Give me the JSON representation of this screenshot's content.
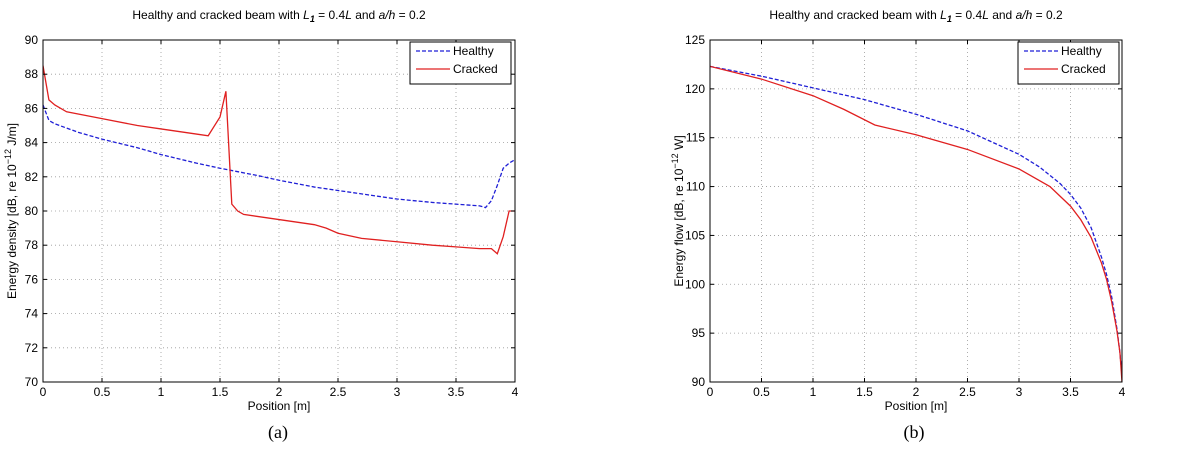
{
  "chart_data": [
    {
      "type": "line",
      "title": "Healthy and cracked beam with L1 = 0.4L and a/h = 0.2",
      "title_parts": {
        "pre": "Healthy and cracked beam with ",
        "sym1": "L",
        "sub1": "1",
        "mid": " = 0.4",
        "sym2": "L",
        "mid2": " and ",
        "sym3": "a/h",
        "post": " = 0.2"
      },
      "xlabel": "Position [m]",
      "ylabel_parts": {
        "pre": "Energy density [dB, re 10",
        "sup": "−12",
        "post": " J/m]"
      },
      "ylabel": "Energy density [dB, re 10^-12 J/m]",
      "xlim": [
        0,
        4
      ],
      "ylim": [
        70,
        90
      ],
      "xticks": [
        "0",
        "0.5",
        "1",
        "1.5",
        "2",
        "2.5",
        "3",
        "3.5",
        "4"
      ],
      "yticks": [
        "70",
        "72",
        "74",
        "76",
        "78",
        "80",
        "82",
        "84",
        "86",
        "88",
        "90"
      ],
      "grid": true,
      "legend_position": "top-right",
      "caption": "(a)",
      "series": [
        {
          "name": "Healthy",
          "color": "#1f1fd6",
          "style": "dashed",
          "x": [
            0,
            0.05,
            0.1,
            0.3,
            0.5,
            0.8,
            1.0,
            1.3,
            1.5,
            1.8,
            2.0,
            2.3,
            2.5,
            2.8,
            3.0,
            3.3,
            3.5,
            3.7,
            3.75,
            3.8,
            3.85,
            3.9,
            3.95,
            4.0
          ],
          "y": [
            86.2,
            85.3,
            85.1,
            84.6,
            84.2,
            83.7,
            83.3,
            82.8,
            82.5,
            82.1,
            81.8,
            81.4,
            81.2,
            80.9,
            80.7,
            80.5,
            80.4,
            80.3,
            80.2,
            80.6,
            81.5,
            82.5,
            82.8,
            83.0
          ]
        },
        {
          "name": "Cracked",
          "color": "#e02020",
          "style": "solid",
          "x": [
            0,
            0.05,
            0.1,
            0.2,
            0.5,
            0.8,
            1.0,
            1.3,
            1.4,
            1.5,
            1.55,
            1.6,
            1.65,
            1.7,
            2.0,
            2.3,
            2.4,
            2.5,
            2.7,
            3.0,
            3.3,
            3.5,
            3.7,
            3.8,
            3.85,
            3.9,
            3.95,
            4.0
          ],
          "y": [
            88.5,
            86.5,
            86.2,
            85.8,
            85.4,
            85.0,
            84.8,
            84.5,
            84.4,
            85.5,
            87.0,
            80.4,
            80.0,
            79.8,
            79.5,
            79.2,
            79.0,
            78.7,
            78.4,
            78.2,
            78.0,
            77.9,
            77.8,
            77.8,
            77.5,
            78.5,
            80.0,
            80.0
          ]
        }
      ]
    },
    {
      "type": "line",
      "title": "Healthy and cracked beam with L1 = 0.4L and a/h = 0.2",
      "title_parts": {
        "pre": "Healthy and cracked beam with ",
        "sym1": "L",
        "sub1": "1",
        "mid": " = 0.4",
        "sym2": "L",
        "mid2": " and ",
        "sym3": "a/h",
        "post": " = 0.2"
      },
      "xlabel": "Position [m]",
      "ylabel_parts": {
        "pre": "Energy flow [dB, re 10",
        "sup": "−12",
        "post": " W]"
      },
      "ylabel": "Energy flow [dB, re 10^-12 W]",
      "xlim": [
        0,
        4
      ],
      "ylim": [
        90,
        125
      ],
      "xticks": [
        "0",
        "0.5",
        "1",
        "1.5",
        "2",
        "2.5",
        "3",
        "3.5",
        "4"
      ],
      "yticks": [
        "90",
        "95",
        "100",
        "105",
        "110",
        "115",
        "120",
        "125"
      ],
      "grid": true,
      "legend_position": "top-right",
      "caption": "(b)",
      "series": [
        {
          "name": "Healthy",
          "color": "#1f1fd6",
          "style": "dashed",
          "x": [
            0,
            0.5,
            1.0,
            1.5,
            2.0,
            2.5,
            3.0,
            3.2,
            3.4,
            3.5,
            3.6,
            3.7,
            3.8,
            3.85,
            3.9,
            3.95,
            3.98,
            4.0
          ],
          "y": [
            122.3,
            121.3,
            120.1,
            118.9,
            117.4,
            115.7,
            113.3,
            112.0,
            110.3,
            109.2,
            107.8,
            105.8,
            102.8,
            101.0,
            98.7,
            95.5,
            93.0,
            90.5
          ]
        },
        {
          "name": "Cracked",
          "color": "#e02020",
          "style": "solid",
          "x": [
            0,
            0.5,
            1.0,
            1.3,
            1.6,
            2.0,
            2.5,
            3.0,
            3.3,
            3.5,
            3.6,
            3.7,
            3.8,
            3.85,
            3.9,
            3.95,
            3.98,
            4.0
          ],
          "y": [
            122.3,
            121.0,
            119.3,
            117.9,
            116.3,
            115.3,
            113.8,
            111.8,
            110.0,
            108.0,
            106.6,
            104.8,
            102.2,
            100.5,
            98.2,
            95.3,
            93.0,
            90.0
          ]
        }
      ]
    }
  ]
}
